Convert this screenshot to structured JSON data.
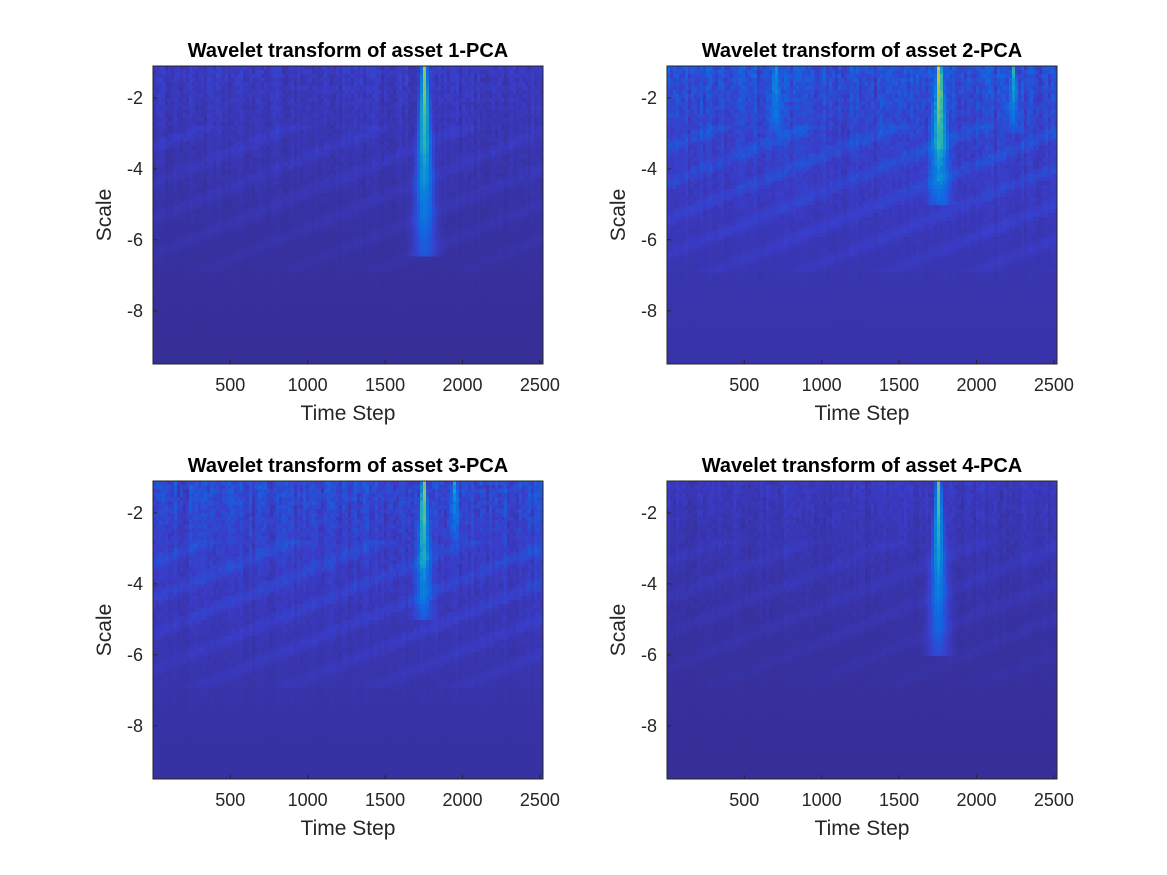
{
  "chart_data": [
    {
      "type": "heatmap",
      "title": "Wavelet transform of asset 1-PCA",
      "xlabel": "Time Step",
      "ylabel": "Scale",
      "xlim": [
        1,
        2520
      ],
      "ylim": [
        -9.5,
        -1.1
      ],
      "xticks": [
        500,
        1000,
        1500,
        2000,
        2500
      ],
      "yticks": [
        -2,
        -4,
        -6,
        -8
      ],
      "colormap": "parula",
      "background_level": 0.05,
      "noise_strength": 0.12,
      "hotspots": [
        {
          "x": 1755,
          "y_top": -1.1,
          "y_bottom": -6.5,
          "peak": 0.7,
          "width": 15
        }
      ]
    },
    {
      "type": "heatmap",
      "title": "Wavelet transform of asset 2-PCA",
      "xlabel": "Time Step",
      "ylabel": "Scale",
      "xlim": [
        1,
        2520
      ],
      "ylim": [
        -9.5,
        -1.1
      ],
      "xticks": [
        500,
        1000,
        1500,
        2000,
        2500
      ],
      "yticks": [
        -2,
        -4,
        -6,
        -8
      ],
      "colormap": "parula",
      "background_level": 0.08,
      "noise_strength": 0.22,
      "hotspots": [
        {
          "x": 1760,
          "y_top": -1.1,
          "y_bottom": -5.0,
          "peak": 0.75,
          "width": 14
        },
        {
          "x": 2240,
          "y_top": -1.1,
          "y_bottom": -3.0,
          "peak": 0.4,
          "width": 10
        },
        {
          "x": 700,
          "y_top": -1.1,
          "y_bottom": -3.0,
          "peak": 0.3,
          "width": 10
        }
      ]
    },
    {
      "type": "heatmap",
      "title": "Wavelet transform of asset 3-PCA",
      "xlabel": "Time Step",
      "ylabel": "Scale",
      "xlim": [
        1,
        2520
      ],
      "ylim": [
        -9.5,
        -1.1
      ],
      "xticks": [
        500,
        1000,
        1500,
        2000,
        2500
      ],
      "yticks": [
        -2,
        -4,
        -6,
        -8
      ],
      "colormap": "parula",
      "background_level": 0.07,
      "noise_strength": 0.2,
      "hotspots": [
        {
          "x": 1750,
          "y_top": -1.1,
          "y_bottom": -5.0,
          "peak": 0.65,
          "width": 12
        },
        {
          "x": 1950,
          "y_top": -1.1,
          "y_bottom": -2.8,
          "peak": 0.3,
          "width": 10
        }
      ]
    },
    {
      "type": "heatmap",
      "title": "Wavelet transform of asset 4-PCA",
      "xlabel": "Time Step",
      "ylabel": "Scale",
      "xlim": [
        1,
        2520
      ],
      "ylim": [
        -9.5,
        -1.1
      ],
      "xticks": [
        500,
        1000,
        1500,
        2000,
        2500
      ],
      "yticks": [
        -2,
        -4,
        -6,
        -8
      ],
      "colormap": "parula",
      "background_level": 0.05,
      "noise_strength": 0.1,
      "hotspots": [
        {
          "x": 1755,
          "y_top": -1.1,
          "y_bottom": -6.0,
          "peak": 0.6,
          "width": 14
        }
      ]
    }
  ]
}
